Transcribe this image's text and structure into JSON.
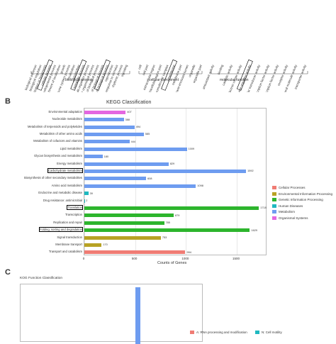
{
  "panel_a": {
    "section_labels": [
      "biological process",
      "cellular component",
      "molecular function"
    ],
    "category_labels": [
      "biological adhesion",
      "biological regulation",
      "cellular component organization or biogenesis",
      "cellular process",
      "developmental process",
      "establishment of localization",
      "growth",
      "immune system process",
      "localization",
      "locomotion",
      "metabolic process",
      "multi-organism process",
      "multicellular organismal process",
      "negative regulation of biological process",
      "positive regulation of biological process",
      "regulation of biological process",
      "reproduction",
      "response to stimulus",
      "rhythmic process",
      "signaling",
      "cell",
      "cell part",
      "extracellular region",
      "extracellular region part",
      "macromolecular complex",
      "membrane",
      "membrane part",
      "membrane-enclosed lumen",
      "organelle",
      "organelle part",
      "antioxidant activity",
      "binding",
      "catalytic activity",
      "electron carrier activity",
      "enzyme regulator activity",
      "molecular transducer activity",
      "nucleic acid binding transcription factor activity",
      "protein binding transcription factor activity",
      "receptor activity",
      "structural molecule activity",
      "transporter activity"
    ]
  },
  "panel_b": {
    "letter": "B",
    "chart_data": {
      "type": "bar",
      "orientation": "horizontal",
      "title": "KEGG Classification",
      "xlabel": "Counts of Genes",
      "ylabel": "",
      "xlim": [
        0,
        1800
      ],
      "xticks": [
        "0",
        "500",
        "1000",
        "1500"
      ],
      "categories": [
        "Environmental adaptation",
        "Nucleotide metabolism",
        "Metabolism of terpenoids and polyketides",
        "Metabolism of other amino acids",
        "Metabolism of cofactors and vitamins",
        "Lipid metabolism",
        "Glycan biosynthesis and metabolism",
        "Energy metabolism",
        "Carbohydrate metabolism",
        "Biosynthesis of other secondary metabolites",
        "Amino acid metabolism",
        "Endocrine and metabolic disease",
        "Drug resistance: antimicrobial",
        "Translation",
        "Transcription",
        "Replication and repair",
        "Folding, sorting and degradation",
        "Signal transduction",
        "Membrane transport",
        "Transport and catabolism"
      ],
      "values": [
        407,
        388,
        494,
        585,
        444,
        1009,
        180,
        829,
        1592,
        608,
        1098,
        39,
        2,
        1718,
        879,
        785,
        1629,
        753,
        170,
        994
      ],
      "value_labels": [
        "407",
        "388",
        "494",
        "585",
        "444",
        "1009",
        "180",
        "829",
        "1592",
        "608",
        "1098",
        "39",
        "2",
        "1718",
        "879",
        "785",
        "1629",
        "753",
        "170",
        "994"
      ],
      "groups": [
        "Organismal Systems",
        "Metabolism",
        "Metabolism",
        "Metabolism",
        "Metabolism",
        "Metabolism",
        "Metabolism",
        "Metabolism",
        "Metabolism",
        "Metabolism",
        "Metabolism",
        "Human Diseases",
        "Human Diseases",
        "Genetic Information Processing",
        "Genetic Information Processing",
        "Genetic Information Processing",
        "Genetic Information Processing",
        "Environmental Information Processing",
        "Environmental Information Processing",
        "Cellular Processes"
      ],
      "boxed": [
        "Carbohydrate metabolism",
        "Translation",
        "Folding, sorting and degradation"
      ],
      "legend": [
        {
          "name": "Cellular Processes",
          "color": "#f07c74"
        },
        {
          "name": "Environmental Information Processing",
          "color": "#b8a224"
        },
        {
          "name": "Genetic Information Processing",
          "color": "#2db52d"
        },
        {
          "name": "Human Diseases",
          "color": "#1fb9c0"
        },
        {
          "name": "Metabolism",
          "color": "#6e9cf0"
        },
        {
          "name": "Organismal Systems",
          "color": "#e467e0"
        }
      ],
      "legend_position": "right",
      "grid": true
    }
  },
  "panel_c": {
    "letter": "C",
    "title": "KOG Function Classification",
    "legend": [
      {
        "name": "A: RNA processing and modification",
        "color": "#f07c74"
      },
      {
        "name": "N: Cell motility",
        "color": "#1fb9c0"
      }
    ],
    "bar_color": "#6e9cf0"
  }
}
